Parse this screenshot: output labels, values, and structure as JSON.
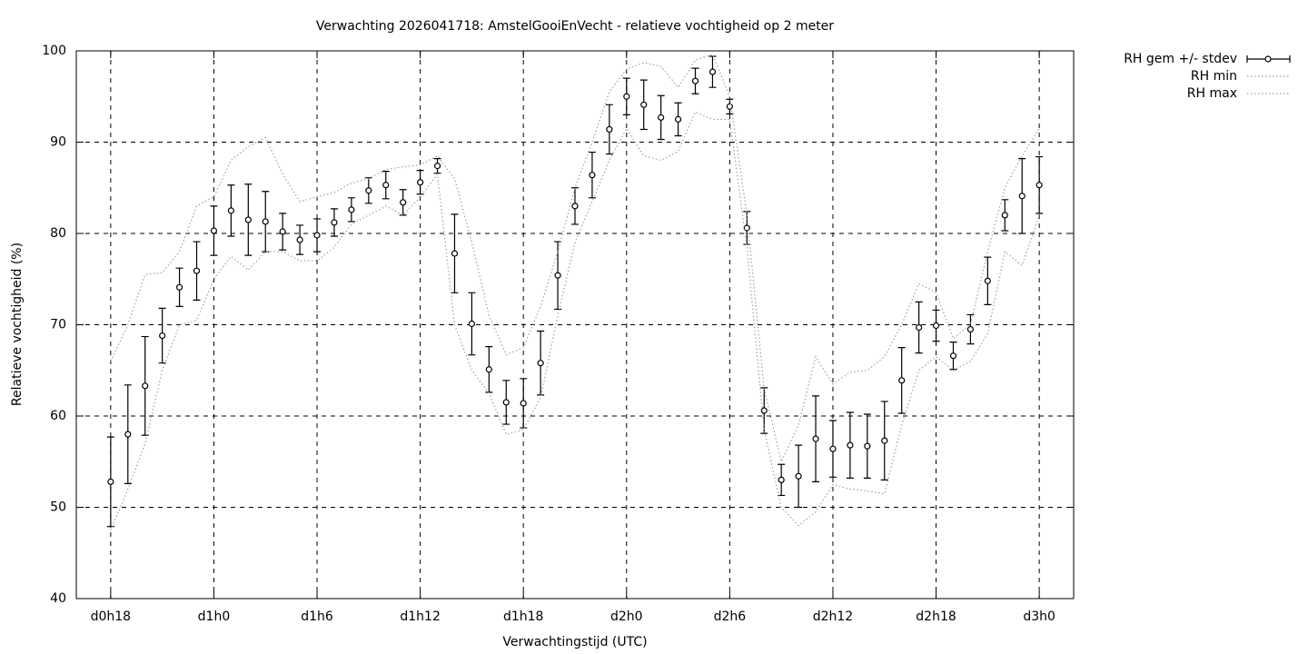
{
  "chart_data": {
    "type": "errorbar-line",
    "title": "Verwachting 2026041718: AmstelGooiEnVecht - relatieve vochtigheid op 2 meter",
    "x_label": "Verwachtingstijd (UTC)",
    "y_label": "Relatieve vochtigheid (%)",
    "x": [
      18,
      19,
      20,
      21,
      22,
      23,
      24,
      25,
      26,
      27,
      28,
      29,
      30,
      31,
      32,
      33,
      34,
      35,
      36,
      37,
      38,
      39,
      40,
      41,
      42,
      43,
      44,
      45,
      46,
      47,
      48,
      49,
      50,
      51,
      52,
      53,
      54,
      55,
      56,
      57,
      58,
      59,
      60,
      61,
      62,
      63,
      64,
      65,
      66,
      67,
      68,
      69,
      70,
      71,
      72
    ],
    "xlim": [
      16,
      74
    ],
    "xticks": [
      {
        "value": 18,
        "label": "d0h18"
      },
      {
        "value": 24,
        "label": "d1h0"
      },
      {
        "value": 30,
        "label": "d1h6"
      },
      {
        "value": 36,
        "label": "d1h12"
      },
      {
        "value": 42,
        "label": "d1h18"
      },
      {
        "value": 48,
        "label": "d2h0"
      },
      {
        "value": 54,
        "label": "d2h6"
      },
      {
        "value": 60,
        "label": "d2h12"
      },
      {
        "value": 66,
        "label": "d2h18"
      },
      {
        "value": 72,
        "label": "d3h0"
      }
    ],
    "ylim": [
      40,
      100
    ],
    "yticks": [
      40,
      50,
      60,
      70,
      80,
      90,
      100
    ],
    "grid": true,
    "legend": "outside-top-right",
    "series": [
      {
        "name": "RH gem +/- stdev",
        "color": "#000000",
        "values": [
          52.8,
          58.0,
          63.3,
          68.8,
          74.1,
          75.9,
          80.3,
          82.5,
          81.5,
          81.3,
          80.2,
          79.3,
          79.8,
          81.2,
          82.6,
          84.7,
          85.3,
          83.4,
          85.6,
          87.4,
          77.8,
          70.1,
          65.1,
          61.5,
          61.4,
          65.8,
          75.4,
          83.0,
          86.4,
          91.4,
          95.0,
          94.1,
          92.7,
          92.5,
          96.7,
          97.7,
          93.9,
          80.6,
          60.6,
          53.0,
          53.4,
          57.5,
          56.4,
          56.8,
          56.7,
          57.3,
          63.9,
          69.7,
          69.9,
          66.6,
          69.5,
          74.8,
          82.0,
          84.1,
          85.3
        ],
        "stdev": [
          4.9,
          5.4,
          5.4,
          3.0,
          2.1,
          3.2,
          2.7,
          2.8,
          3.9,
          3.3,
          2.0,
          1.6,
          1.8,
          1.5,
          1.3,
          1.4,
          1.5,
          1.4,
          1.3,
          0.8,
          4.3,
          3.4,
          2.5,
          2.4,
          2.7,
          3.5,
          3.7,
          2.0,
          2.5,
          2.7,
          2.0,
          2.7,
          2.4,
          1.8,
          1.4,
          1.7,
          0.8,
          1.8,
          2.5,
          1.7,
          3.4,
          4.7,
          3.1,
          3.6,
          3.5,
          4.3,
          3.6,
          2.8,
          1.7,
          1.5,
          1.6,
          2.6,
          1.7,
          4.1,
          3.1
        ]
      },
      {
        "name": "RH min",
        "color": "#a0a0a0",
        "values": [
          47.5,
          52,
          57,
          65,
          70,
          70.5,
          75,
          77.5,
          76,
          78,
          78,
          77,
          77,
          78.5,
          81,
          82,
          83,
          82,
          84,
          86.5,
          70,
          65,
          62.5,
          58,
          58.5,
          62,
          71,
          79,
          83.5,
          88,
          91.5,
          88.5,
          88,
          89,
          93.3,
          92.5,
          92.5,
          78.5,
          58.5,
          50,
          48,
          49.5,
          52.5,
          52,
          51.8,
          51.5,
          59,
          65,
          66.5,
          65,
          66,
          69,
          78,
          76.5,
          82
        ]
      },
      {
        "name": "RH max",
        "color": "#a0a0a0",
        "values": [
          66,
          70,
          75.5,
          75.7,
          78,
          83,
          84,
          88,
          89.5,
          90.5,
          86.5,
          83.5,
          84,
          84.5,
          85.5,
          86,
          87,
          87.3,
          87.5,
          88.5,
          86,
          79,
          71,
          66.7,
          67.5,
          72,
          78,
          85,
          90,
          95.5,
          98,
          98.7,
          98.3,
          96,
          99,
          99.6,
          95,
          82,
          63,
          55,
          59,
          66.5,
          63.5,
          64.8,
          65,
          66.5,
          70,
          74.5,
          73.5,
          68.5,
          70,
          78,
          85,
          88.5,
          91.5
        ]
      }
    ]
  }
}
